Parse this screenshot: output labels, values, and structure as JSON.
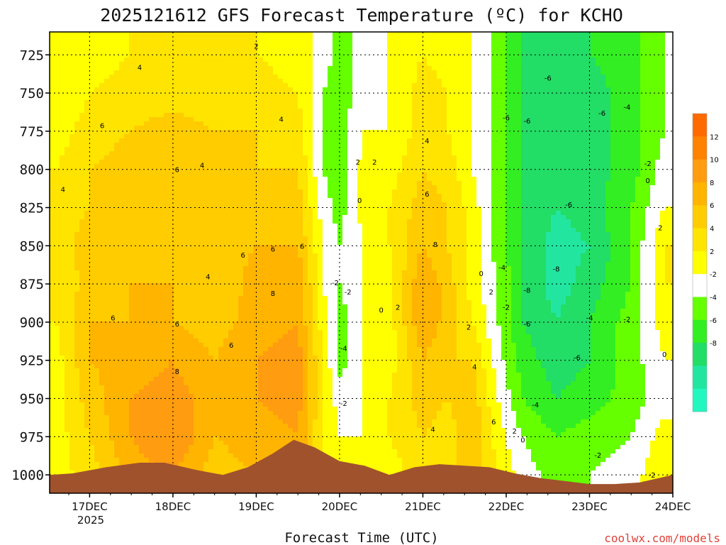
{
  "chart_data": {
    "type": "heatmap",
    "title": "2025121612 GFS Forecast Temperature (ºC) for KCHO",
    "xlabel": "Forecast Time (UTC)",
    "ylabel": "",
    "y_ticks": [
      "725",
      "750",
      "775",
      "800",
      "825",
      "850",
      "875",
      "900",
      "925",
      "950",
      "975",
      "1000"
    ],
    "ylim": [
      1012,
      710
    ],
    "x_ticks": [
      "17DEC",
      "18DEC",
      "19DEC",
      "20DEC",
      "21DEC",
      "22DEC",
      "23DEC",
      "24DEC"
    ],
    "x_year": "2025",
    "xlim": [
      16.52,
      24.0
    ],
    "grid": true,
    "colorbar_labels": [
      "12",
      "10",
      "8",
      "6",
      "4",
      "2",
      "-2",
      "-4",
      "-6",
      "-8"
    ],
    "color_levels": [
      {
        "min": 12,
        "max": 14,
        "color": "#ff6a00"
      },
      {
        "min": 10,
        "max": 12,
        "color": "#ff8200"
      },
      {
        "min": 8,
        "max": 10,
        "color": "#ff9c10"
      },
      {
        "min": 6,
        "max": 8,
        "color": "#ffb400"
      },
      {
        "min": 4,
        "max": 6,
        "color": "#ffcc00"
      },
      {
        "min": 2,
        "max": 4,
        "color": "#ffe400"
      },
      {
        "min": 0,
        "max": 2,
        "color": "#ffff00"
      },
      {
        "min": -2,
        "max": 0,
        "color": "#ffffff"
      },
      {
        "min": -4,
        "max": -2,
        "color": "#66ff00"
      },
      {
        "min": -6,
        "max": -4,
        "color": "#33ee22"
      },
      {
        "min": -8,
        "max": -6,
        "color": "#22dd66"
      },
      {
        "min": -10,
        "max": -8,
        "color": "#22e6a0"
      },
      {
        "min": -12,
        "max": -10,
        "color": "#22f7c0"
      }
    ],
    "temperature_profiles": {
      "pressure_levels": [
        725,
        750,
        775,
        800,
        825,
        850,
        875,
        900,
        925,
        950,
        975,
        1000
      ],
      "times": [
        16.6,
        17.0,
        17.5,
        18.0,
        18.5,
        19.0,
        19.5,
        19.8,
        20.0,
        20.3,
        20.6,
        21.0,
        21.3,
        21.6,
        21.9,
        22.2,
        22.6,
        23.0,
        23.5,
        23.9
      ],
      "temperatures": [
        [
          0,
          1,
          2,
          2,
          2,
          2,
          1,
          -1,
          -3,
          -1,
          0,
          2,
          1,
          0,
          -3,
          -6,
          -7,
          -6,
          -5,
          -2
        ],
        [
          0,
          2,
          3,
          3,
          3,
          3,
          2,
          -2,
          -3,
          -1,
          0,
          3,
          2,
          0,
          -3,
          -6,
          -8,
          -7,
          -5,
          -2
        ],
        [
          1,
          3,
          4,
          5,
          4,
          4,
          3,
          -2,
          -3,
          0,
          0,
          3,
          2,
          0,
          -3,
          -6,
          -8,
          -7,
          -5,
          -2
        ],
        [
          2,
          4,
          5,
          6,
          5,
          4,
          4,
          -2,
          -3,
          1,
          1,
          4,
          3,
          0,
          -3,
          -6,
          -8,
          -7,
          -5,
          -1
        ],
        [
          3,
          4,
          5,
          6,
          5,
          5,
          5,
          -1,
          -3,
          1,
          2,
          5,
          4,
          1,
          -3,
          -6,
          -8,
          -7,
          -4,
          0
        ],
        [
          3,
          5,
          5,
          6,
          5,
          6,
          6,
          0,
          -2,
          0,
          2,
          6,
          4,
          1,
          -3,
          -6,
          -9,
          -8,
          -4,
          2
        ],
        [
          2,
          5,
          6,
          6,
          4,
          7,
          8,
          0,
          -2,
          0,
          1,
          8,
          5,
          1,
          -2,
          -6,
          -9,
          -7,
          -4,
          2
        ],
        [
          2,
          6,
          6,
          6,
          5,
          7,
          8,
          1,
          -3,
          0,
          1,
          8,
          5,
          2,
          -2,
          -6,
          -8,
          -6,
          -3,
          1
        ],
        [
          1,
          6,
          7,
          8,
          6,
          8,
          9,
          2,
          -3,
          0,
          1,
          6,
          4,
          4,
          -1,
          -5,
          -7,
          -6,
          -3,
          0
        ],
        [
          1,
          5,
          8,
          9,
          7,
          8,
          9,
          2,
          -1,
          0,
          2,
          5,
          4,
          5,
          0,
          -4,
          -6,
          -5,
          -3,
          -1
        ],
        [
          1,
          4,
          8,
          10,
          6,
          7,
          8,
          2,
          0,
          0,
          2,
          4,
          3,
          6,
          1,
          -2,
          -4,
          -3,
          -2,
          1
        ],
        [
          1,
          3,
          7,
          8,
          5,
          6,
          7,
          2,
          0,
          0,
          1,
          3,
          3,
          5,
          2,
          -1,
          -3,
          -2,
          -1,
          2
        ]
      ]
    },
    "contour_labels": [
      {
        "text": "4",
        "t": 17.6,
        "p": 733
      },
      {
        "text": "2",
        "t": 19.0,
        "p": 719
      },
      {
        "text": "6",
        "t": 17.15,
        "p": 771
      },
      {
        "text": "4",
        "t": 19.3,
        "p": 767
      },
      {
        "text": "6",
        "t": 18.05,
        "p": 800
      },
      {
        "text": "4",
        "t": 18.35,
        "p": 797
      },
      {
        "text": "4",
        "t": 16.68,
        "p": 813
      },
      {
        "text": "6",
        "t": 18.84,
        "p": 856
      },
      {
        "text": "6",
        "t": 19.2,
        "p": 852
      },
      {
        "text": "6",
        "t": 19.55,
        "p": 850
      },
      {
        "text": "4",
        "t": 18.42,
        "p": 870
      },
      {
        "text": "8",
        "t": 19.2,
        "p": 881
      },
      {
        "text": "6",
        "t": 17.28,
        "p": 897
      },
      {
        "text": "6",
        "t": 18.05,
        "p": 901
      },
      {
        "text": "6",
        "t": 18.7,
        "p": 915
      },
      {
        "text": "8",
        "t": 18.05,
        "p": 932
      },
      {
        "text": "4",
        "t": 21.05,
        "p": 781
      },
      {
        "text": "6",
        "t": 21.05,
        "p": 816
      },
      {
        "text": "8",
        "t": 21.15,
        "p": 849
      },
      {
        "text": "2",
        "t": 20.22,
        "p": 795
      },
      {
        "text": "2",
        "t": 20.42,
        "p": 795
      },
      {
        "text": "0",
        "t": 20.24,
        "p": 820
      },
      {
        "text": "-2",
        "t": 19.95,
        "p": 874
      },
      {
        "text": "-2",
        "t": 20.1,
        "p": 880
      },
      {
        "text": "0",
        "t": 20.5,
        "p": 892
      },
      {
        "text": "2",
        "t": 20.7,
        "p": 890
      },
      {
        "text": "-4",
        "t": 20.05,
        "p": 917
      },
      {
        "text": "-2",
        "t": 20.05,
        "p": 953
      },
      {
        "text": "2",
        "t": 21.55,
        "p": 903
      },
      {
        "text": "4",
        "t": 21.62,
        "p": 929
      },
      {
        "text": "6",
        "t": 21.85,
        "p": 965
      },
      {
        "text": "4",
        "t": 21.12,
        "p": 970
      },
      {
        "text": "2",
        "t": 22.1,
        "p": 971
      },
      {
        "text": "0",
        "t": 22.2,
        "p": 977
      },
      {
        "text": "0",
        "t": 21.7,
        "p": 868
      },
      {
        "text": "2",
        "t": 21.82,
        "p": 880
      },
      {
        "text": "-4",
        "t": 21.95,
        "p": 864
      },
      {
        "text": "-2",
        "t": 22.0,
        "p": 890
      },
      {
        "text": "-6",
        "t": 22.5,
        "p": 740
      },
      {
        "text": "-6",
        "t": 22.0,
        "p": 766
      },
      {
        "text": "-6",
        "t": 22.25,
        "p": 768
      },
      {
        "text": "-6",
        "t": 23.15,
        "p": 763
      },
      {
        "text": "-4",
        "t": 23.45,
        "p": 759
      },
      {
        "text": "-2",
        "t": 23.7,
        "p": 796
      },
      {
        "text": "0",
        "t": 23.7,
        "p": 807
      },
      {
        "text": "-6",
        "t": 22.75,
        "p": 823
      },
      {
        "text": "-8",
        "t": 22.25,
        "p": 879
      },
      {
        "text": "-8",
        "t": 22.6,
        "p": 865
      },
      {
        "text": "-6",
        "t": 22.25,
        "p": 901
      },
      {
        "text": "-4",
        "t": 23.0,
        "p": 897
      },
      {
        "text": "-2",
        "t": 23.45,
        "p": 898
      },
      {
        "text": "-6",
        "t": 22.85,
        "p": 923
      },
      {
        "text": "-4",
        "t": 22.35,
        "p": 954
      },
      {
        "text": "2",
        "t": 23.85,
        "p": 838
      },
      {
        "text": "0",
        "t": 23.9,
        "p": 921
      },
      {
        "text": "-2",
        "t": 23.1,
        "p": 987
      },
      {
        "text": "-2",
        "t": 23.75,
        "p": 1000
      }
    ],
    "terrain_surface_pressure": {
      "times": [
        16.52,
        16.8,
        17.2,
        17.6,
        17.9,
        18.3,
        18.6,
        18.9,
        19.2,
        19.45,
        19.7,
        20.0,
        20.3,
        20.6,
        20.9,
        21.2,
        21.5,
        21.8,
        22.1,
        22.4,
        22.7,
        23.0,
        23.3,
        23.6,
        24.0
      ],
      "pressures": [
        1000,
        999,
        995,
        992,
        992,
        997,
        1000,
        995,
        986,
        977,
        982,
        991,
        994,
        1000,
        995,
        993,
        994,
        995,
        999,
        1002,
        1004,
        1006,
        1006,
        1005,
        1000
      ]
    },
    "credit": "coolwx.com/models"
  }
}
